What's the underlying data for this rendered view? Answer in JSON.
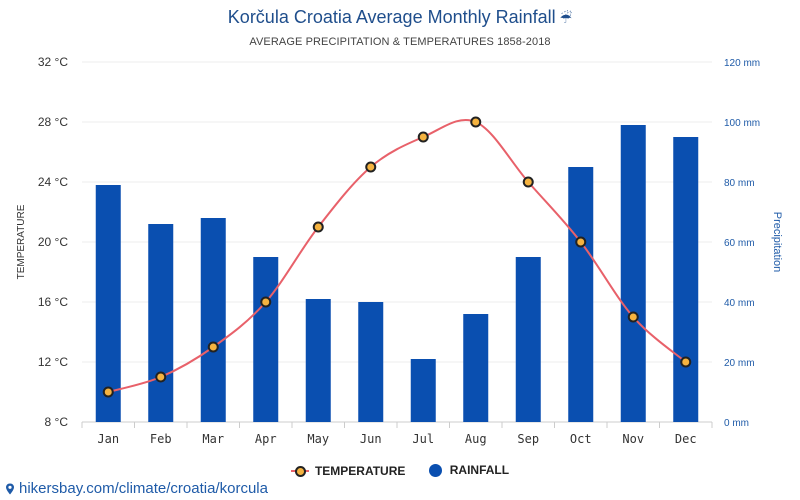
{
  "title": "Korčula Croatia Average Monthly Rainfall",
  "subtitle": "AVERAGE PRECIPITATION & TEMPERATURES 1858-2018",
  "title_icon": "umbrella-rain-icon",
  "footer": {
    "link_text": "hikersbay.com/climate/croatia/korcula",
    "icon": "map-pin-icon"
  },
  "legend": {
    "temperature": "TEMPERATURE",
    "rainfall": "RAINFALL"
  },
  "colors": {
    "bar": "#0a4fb0",
    "line": "#e8616a",
    "marker_fill": "#f5b340",
    "marker_stroke": "#222222",
    "title": "#1f4e8c",
    "right_axis": "#1f5ba8"
  },
  "chart_data": {
    "type": "bar",
    "categories": [
      "Jan",
      "Feb",
      "Mar",
      "Apr",
      "May",
      "Jun",
      "Jul",
      "Aug",
      "Sep",
      "Oct",
      "Nov",
      "Dec"
    ],
    "series": [
      {
        "name": "RAINFALL",
        "type": "bar",
        "axis": "right",
        "unit": "mm",
        "values": [
          79,
          66,
          68,
          55,
          41,
          40,
          21,
          36,
          55,
          85,
          99,
          95
        ]
      },
      {
        "name": "TEMPERATURE",
        "type": "line",
        "axis": "left",
        "unit": "°C",
        "values": [
          10,
          11,
          13,
          16,
          21,
          25,
          27,
          28,
          24,
          20,
          15,
          12
        ]
      }
    ],
    "left_axis": {
      "label": "TEMPERATURE",
      "ylim": [
        8,
        32
      ],
      "ticks": [
        "8 °C",
        "12 °C",
        "16 °C",
        "20 °C",
        "24 °C",
        "28 °C",
        "32 °C"
      ]
    },
    "right_axis": {
      "label": "Precipitation",
      "ylim": [
        0,
        120
      ],
      "ticks": [
        "0 mm",
        "20 mm",
        "40 mm",
        "60 mm",
        "80 mm",
        "100 mm",
        "120 mm"
      ]
    },
    "grid": true,
    "legend_position": "bottom-center"
  }
}
